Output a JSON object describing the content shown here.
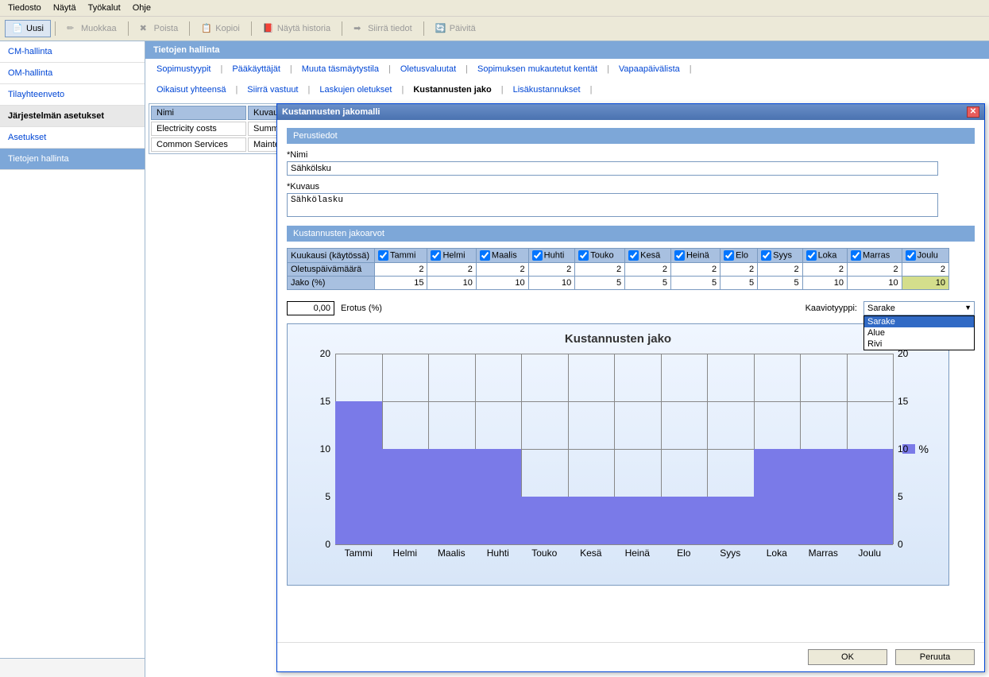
{
  "menu": {
    "items": [
      "Tiedosto",
      "Näytä",
      "Työkalut",
      "Ohje"
    ]
  },
  "toolbar": {
    "items": [
      {
        "label": "Uusi",
        "active": true
      },
      {
        "label": "Muokkaa",
        "active": false
      },
      {
        "label": "Poista",
        "active": false
      },
      {
        "label": "Kopioi",
        "active": false
      },
      {
        "label": "Näytä historia",
        "active": false
      },
      {
        "label": "Siirrä tiedot",
        "active": false
      },
      {
        "label": "Päivitä",
        "active": false
      }
    ]
  },
  "sidebar": {
    "items": [
      {
        "label": "CM-hallinta",
        "type": "item"
      },
      {
        "label": "OM-hallinta",
        "type": "item"
      },
      {
        "label": "Tilayhteenveto",
        "type": "item"
      },
      {
        "label": "Järjestelmän asetukset",
        "type": "header"
      },
      {
        "label": "Asetukset",
        "type": "item"
      },
      {
        "label": "Tietojen hallinta",
        "type": "selected"
      }
    ]
  },
  "content": {
    "title": "Tietojen hallinta",
    "tabs_row1": [
      "Sopimustyypit",
      "Pääkäyttäjät",
      "Muuta täsmäytystila",
      "Oletusvaluutat",
      "Sopimuksen mukautetut kentät",
      "Vapaapäivälista"
    ],
    "tabs_row2": [
      "Oikaisut yhteensä",
      "Siirrä vastuut",
      "Laskujen oletukset",
      "Kustannusten jako",
      "Lisäkustannukset"
    ],
    "active_tab": "Kustannusten jako",
    "grid": {
      "headers": [
        "Nimi",
        "Kuvaus"
      ],
      "rows": [
        [
          "Electricity costs",
          "Summ"
        ],
        [
          "Common Services",
          "Mainte"
        ]
      ]
    }
  },
  "modal": {
    "title": "Kustannusten jakomalli",
    "sections": {
      "perustiedot": {
        "title": "Perustiedot",
        "nimi_label": "*Nimi",
        "nimi_value": "Sähkölsku",
        "kuvaus_label": "*Kuvaus",
        "kuvaus_value": "Sähkölasku"
      },
      "jakoarvot": {
        "title": "Kustannusten jakoarvot",
        "header_label": "Kuukausi (käytössä)",
        "months": [
          "Tammi",
          "Helmi",
          "Maalis",
          "Huhti",
          "Touko",
          "Kesä",
          "Heinä",
          "Elo",
          "Syys",
          "Loka",
          "Marras",
          "Joulu"
        ],
        "row1_label": "Oletuspäivämäärä",
        "row1_values": [
          2,
          2,
          2,
          2,
          2,
          2,
          2,
          2,
          2,
          2,
          2,
          2
        ],
        "row2_label": "Jako (%)",
        "row2_values": [
          15,
          10,
          10,
          10,
          5,
          5,
          5,
          5,
          5,
          10,
          10,
          10
        ]
      }
    },
    "erotus": {
      "value": "0,00",
      "label": "Erotus (%)"
    },
    "kaaviotyyppi": {
      "label": "Kaaviotyyppi:",
      "selected": "Sarake",
      "options": [
        "Sarake",
        "Alue",
        "Rivi"
      ]
    },
    "chart": {
      "type": "bar",
      "title": "Kustannusten jako",
      "legend_label": "%",
      "categories": [
        "Tammi",
        "Helmi",
        "Maalis",
        "Huhti",
        "Touko",
        "Kesä",
        "Heinä",
        "Elo",
        "Syys",
        "Loka",
        "Marras",
        "Joulu"
      ],
      "values": [
        15,
        10,
        10,
        10,
        5,
        5,
        5,
        5,
        5,
        10,
        10,
        10
      ],
      "ylim": [
        0,
        20
      ],
      "ytick_step": 5,
      "bar_color": "#7a7ae8",
      "grid_color": "#888888",
      "background_gradient": [
        "#f0f6ff",
        "#d8e6f8"
      ],
      "title_fontsize": 15,
      "label_fontsize": 12
    },
    "buttons": {
      "ok": "OK",
      "cancel": "Peruuta"
    }
  }
}
